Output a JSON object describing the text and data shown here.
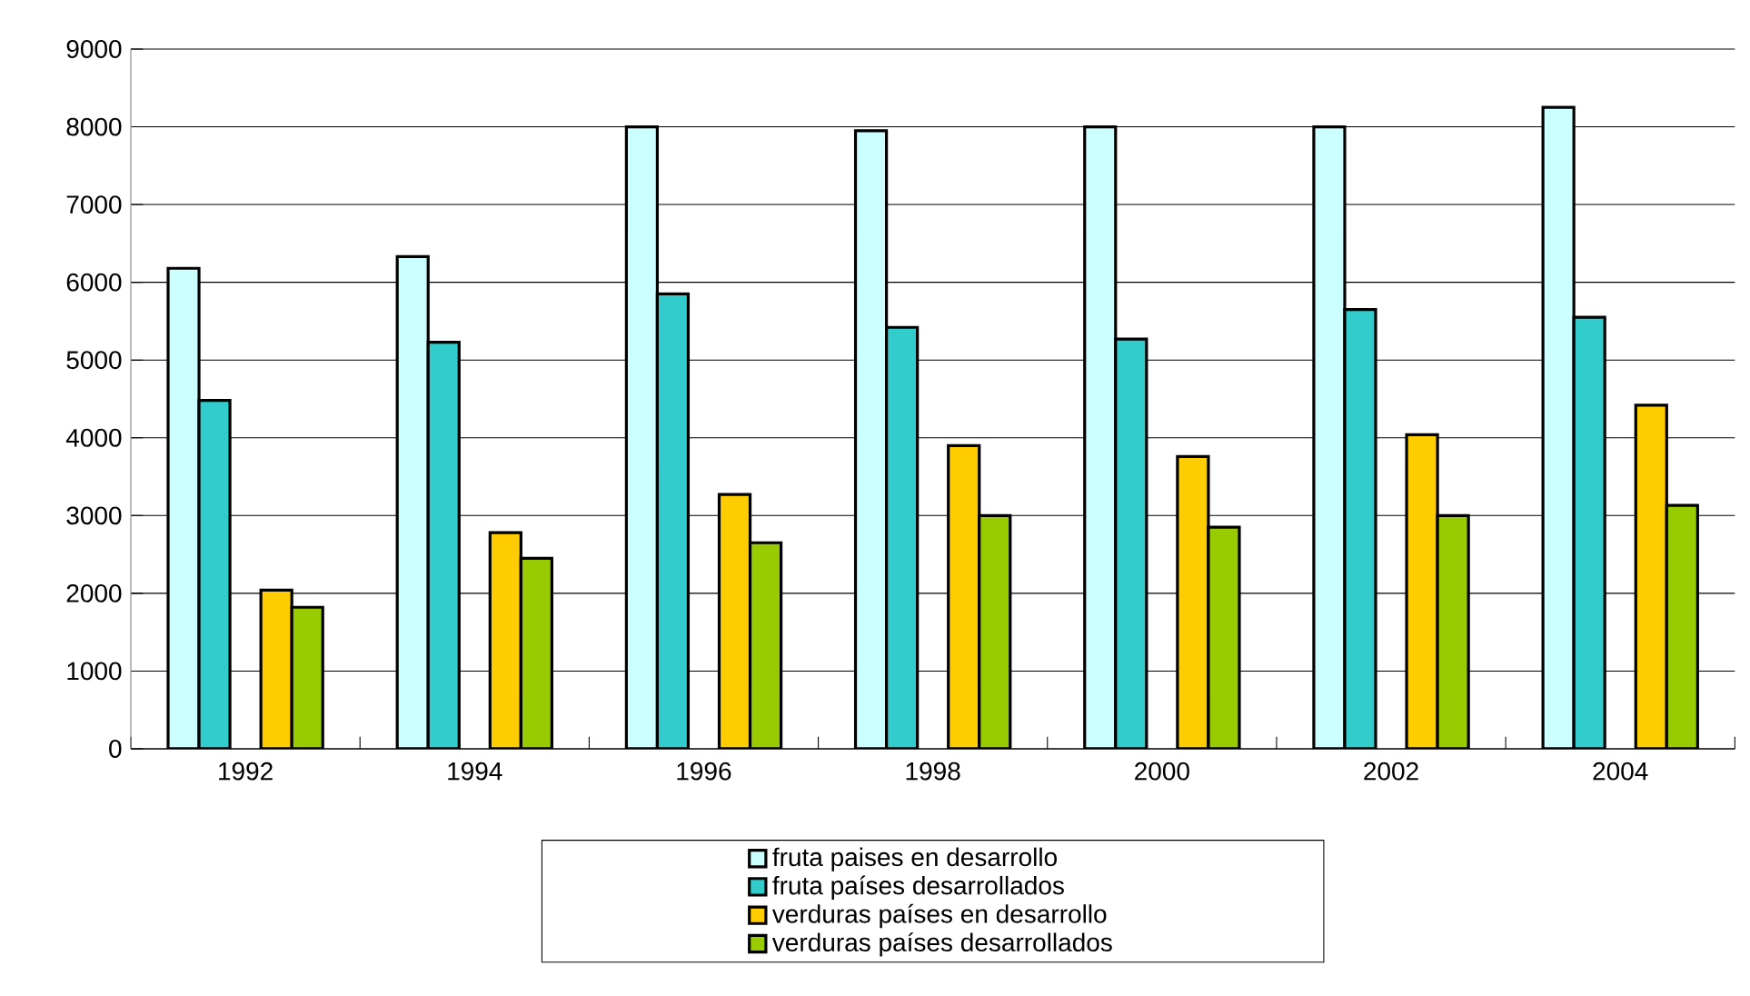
{
  "chart_data": {
    "type": "bar",
    "categories": [
      "1992",
      "1994",
      "1996",
      "1998",
      "2000",
      "2002",
      "2004"
    ],
    "series": [
      {
        "name": "fruta paises en desarrollo",
        "color": "#ccffff",
        "values": [
          6180,
          6330,
          8000,
          7950,
          8000,
          8000,
          8250
        ]
      },
      {
        "name": "fruta países desarrollados",
        "color": "#33cccc",
        "values": [
          4480,
          5230,
          5850,
          5420,
          5270,
          5650,
          5550
        ]
      },
      {
        "name": "verduras países en desarrollo",
        "color": "#ffcc00",
        "values": [
          2040,
          2780,
          3270,
          3900,
          3760,
          4040,
          4420
        ]
      },
      {
        "name": "verduras países desarrollados",
        "color": "#99cc00",
        "values": [
          1820,
          2450,
          2650,
          3000,
          2850,
          3000,
          3130
        ]
      }
    ],
    "ylim": [
      0,
      9000
    ],
    "yticks": [
      0,
      1000,
      2000,
      3000,
      4000,
      5000,
      6000,
      7000,
      8000,
      9000
    ],
    "grid": "y",
    "legend": "bottom"
  }
}
